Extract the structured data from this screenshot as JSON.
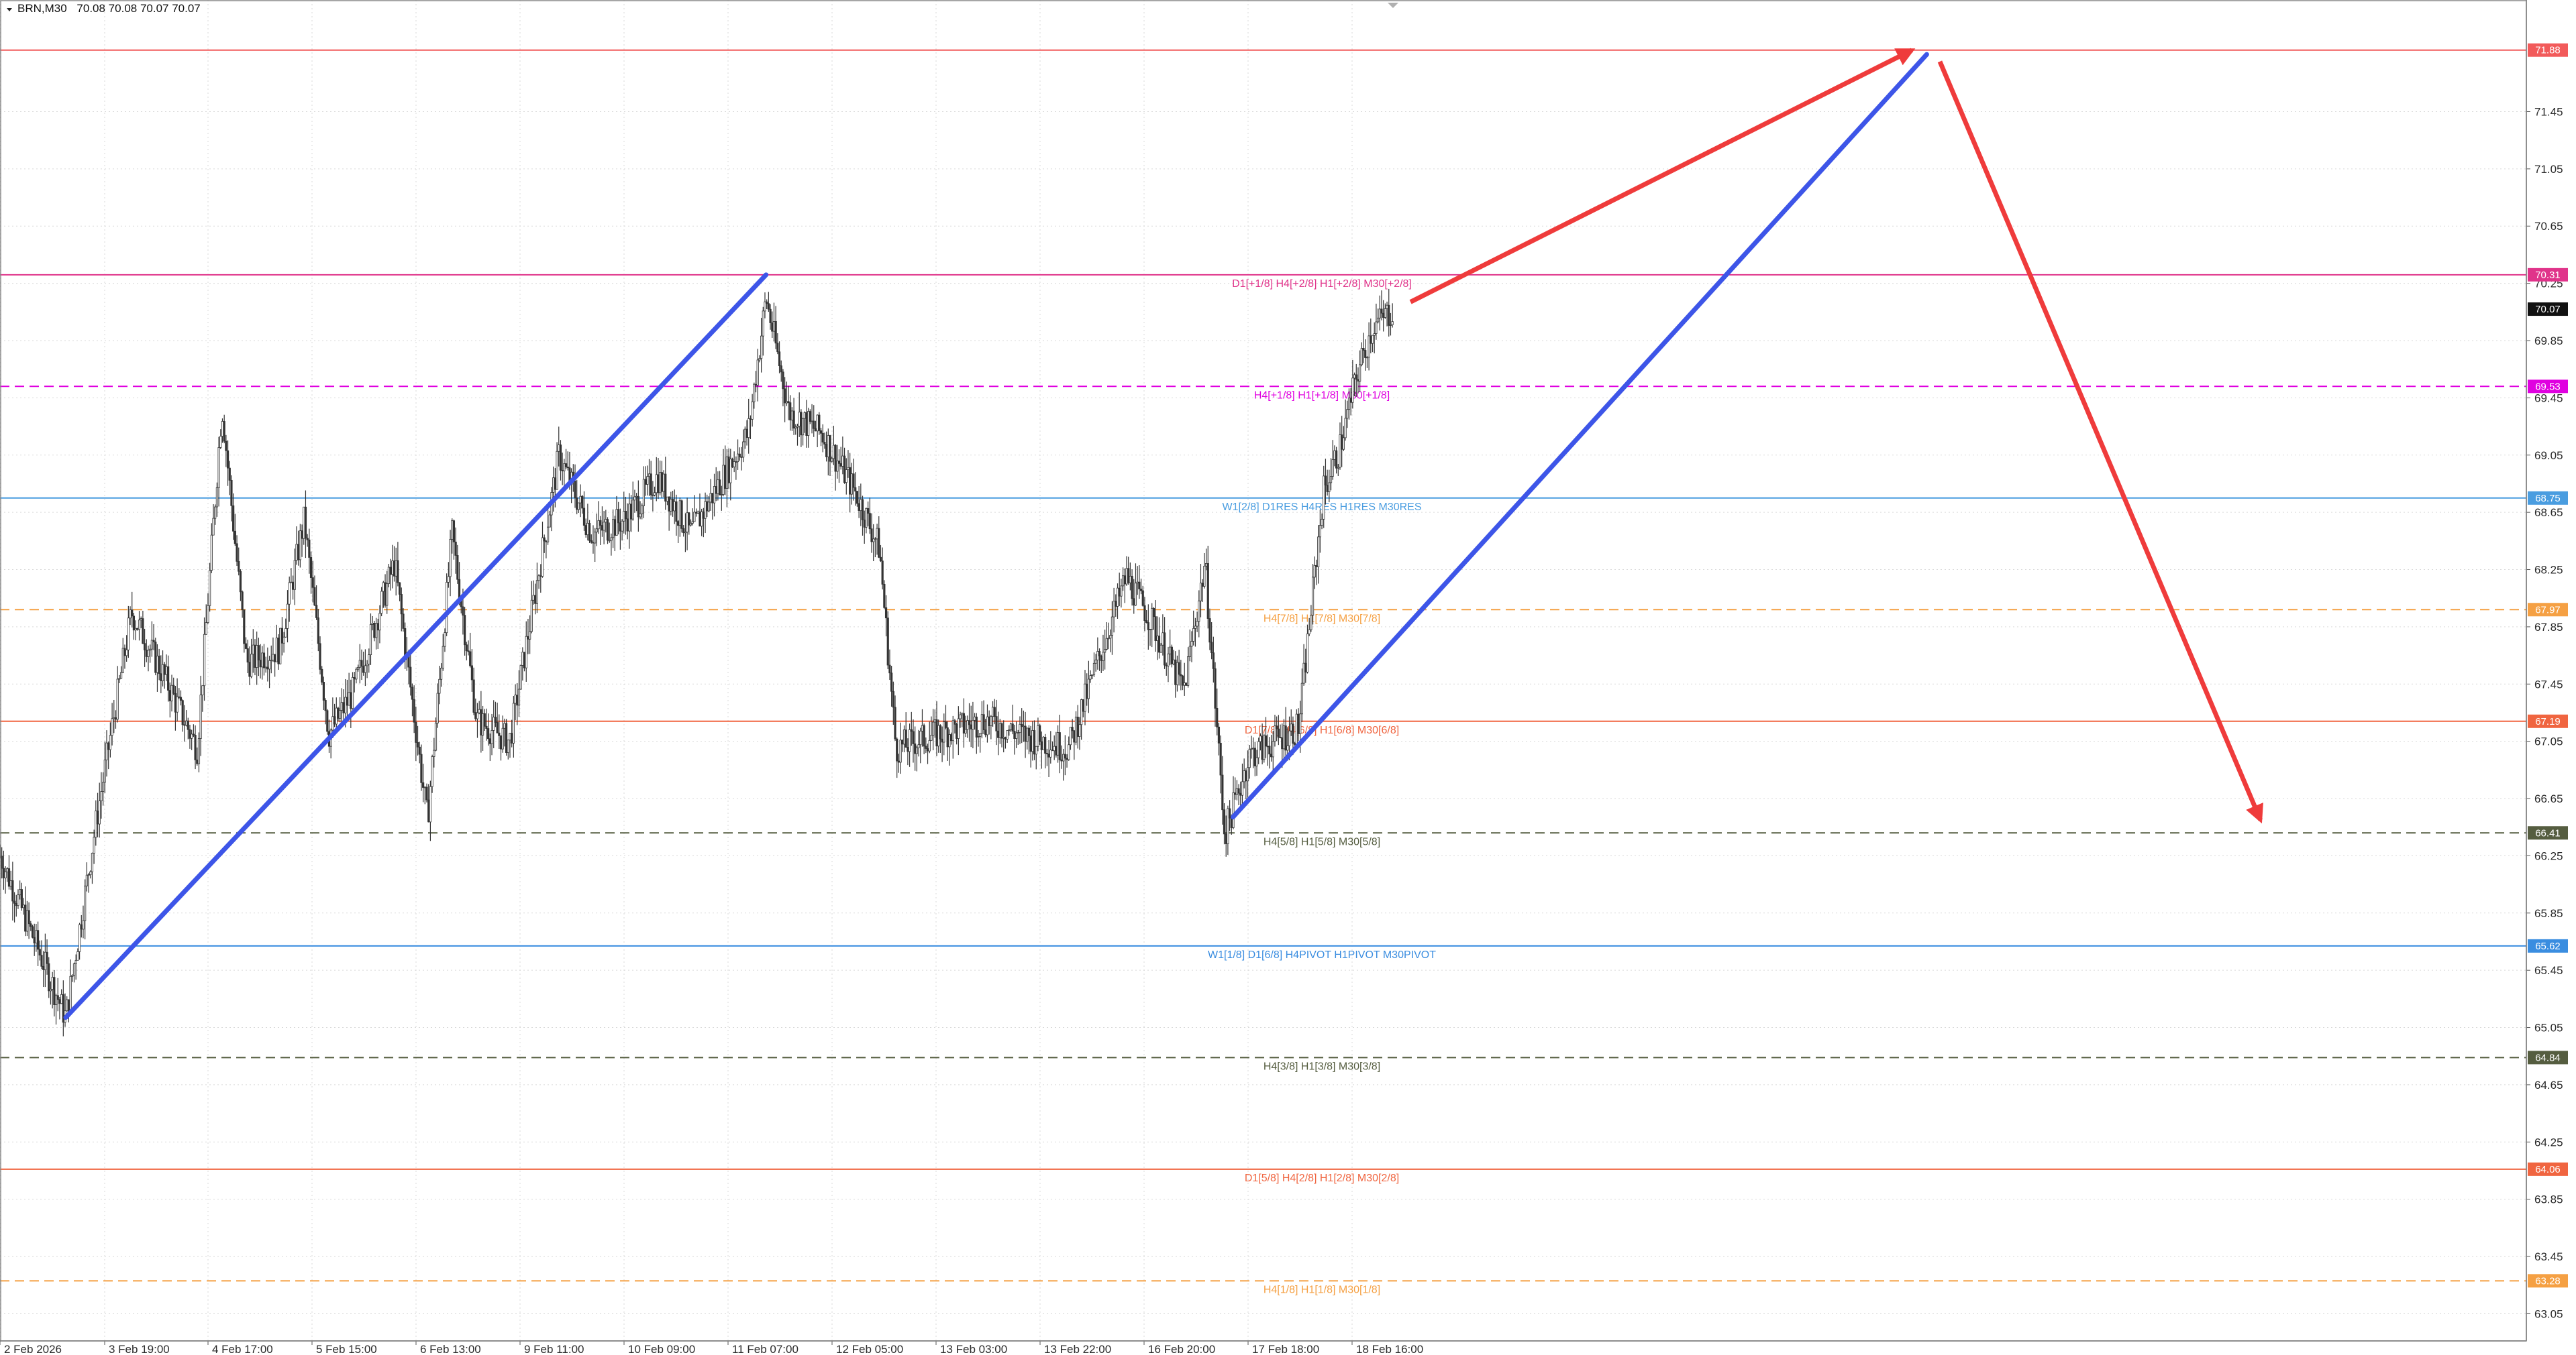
{
  "header": {
    "symbol": "BRN,M30",
    "ohlc": "70.08 70.08 70.07 70.07"
  },
  "chart_data": {
    "type": "candlestick",
    "symbol": "BRN",
    "timeframe": "M30",
    "ylim": [
      62.86,
      72.23
    ],
    "y_ticks": [
      "63.05",
      "63.45",
      "63.85",
      "64.25",
      "64.65",
      "65.05",
      "65.45",
      "65.85",
      "66.25",
      "66.65",
      "67.05",
      "67.45",
      "67.85",
      "68.25",
      "68.65",
      "69.05",
      "69.45",
      "69.85",
      "70.25",
      "70.65",
      "71.05",
      "71.45"
    ],
    "x_tick_labels": [
      "2 Feb 2026",
      "3 Feb 19:00",
      "4 Feb 17:00",
      "5 Feb 15:00",
      "6 Feb 13:00",
      "9 Feb 11:00",
      "10 Feb 09:00",
      "11 Feb 07:00",
      "12 Feb 05:00",
      "13 Feb 03:00",
      "13 Feb 22:00",
      "16 Feb 20:00",
      "17 Feb 18:00",
      "18 Feb 16:00"
    ],
    "current_price": "70.07",
    "price_anchors": [
      [
        0,
        66.25
      ],
      [
        40,
        65.12
      ],
      [
        60,
        66.6
      ],
      [
        80,
        67.95
      ],
      [
        100,
        67.5
      ],
      [
        120,
        67.0
      ],
      [
        135,
        69.4
      ],
      [
        150,
        67.6
      ],
      [
        170,
        67.7
      ],
      [
        185,
        68.6
      ],
      [
        200,
        67.1
      ],
      [
        215,
        67.4
      ],
      [
        240,
        68.3
      ],
      [
        260,
        66.5
      ],
      [
        275,
        68.5
      ],
      [
        290,
        67.2
      ],
      [
        310,
        67.05
      ],
      [
        340,
        69.05
      ],
      [
        360,
        68.5
      ],
      [
        380,
        68.6
      ],
      [
        400,
        68.9
      ],
      [
        420,
        68.5
      ],
      [
        440,
        68.9
      ],
      [
        455,
        69.2
      ],
      [
        466,
        70.15
      ],
      [
        480,
        69.35
      ],
      [
        500,
        69.2
      ],
      [
        520,
        68.8
      ],
      [
        535,
        68.4
      ],
      [
        545,
        67.0
      ],
      [
        570,
        67.1
      ],
      [
        600,
        67.2
      ],
      [
        620,
        67.1
      ],
      [
        650,
        67.0
      ],
      [
        685,
        68.2
      ],
      [
        700,
        67.9
      ],
      [
        720,
        67.4
      ],
      [
        733,
        68.3
      ],
      [
        745,
        66.4
      ],
      [
        760,
        66.95
      ],
      [
        790,
        67.15
      ],
      [
        805,
        68.8
      ],
      [
        815,
        69.1
      ],
      [
        825,
        69.6
      ],
      [
        835,
        69.95
      ],
      [
        848,
        70.07
      ]
    ],
    "levels": [
      {
        "price": "71.88",
        "label": "",
        "color": "#f25a5a",
        "dashed": false
      },
      {
        "price": "70.31",
        "label": "D1[+1/8] H4[+2/8] H1[+2/8] M30[+2/8]",
        "color": "#e0338a",
        "dashed": false
      },
      {
        "price": "69.53",
        "label": "H4[+1/8] H1[+1/8] M30[+1/8]",
        "color": "#e000e0",
        "dashed": true
      },
      {
        "price": "68.75",
        "label": "W1[2/8] D1RES H4RES H1RES M30RES",
        "color": "#4a9de0",
        "dashed": false
      },
      {
        "price": "67.97",
        "label": "H4[7/8] H1[7/8] M30[7/8]",
        "color": "#f5a043",
        "dashed": true
      },
      {
        "price": "67.19",
        "label": "D1[7/8] H4[6/8] H1[6/8] M30[6/8]",
        "color": "#f06540",
        "dashed": false
      },
      {
        "price": "66.41",
        "label": "H4[5/8] H1[5/8] M30[5/8]",
        "color": "#555d40",
        "dashed": true
      },
      {
        "price": "65.62",
        "label": "W1[1/8] D1[6/8] H4PIVOT H1PIVOT M30PIVOT",
        "color": "#3a8de0",
        "dashed": false
      },
      {
        "price": "64.84",
        "label": "H4[3/8] H1[3/8] M30[3/8]",
        "color": "#555d40",
        "dashed": true
      },
      {
        "price": "64.06",
        "label": "D1[5/8] H4[2/8] H1[2/8] M30[2/8]",
        "color": "#f06540",
        "dashed": false
      },
      {
        "price": "63.28",
        "label": "H4[1/8] H1[1/8] M30[1/8]",
        "color": "#f5a043",
        "dashed": true
      }
    ],
    "trendlines": [
      {
        "color": "#3d55e8",
        "from": [
          40,
          65.12
        ],
        "to": [
          466,
          70.31
        ]
      },
      {
        "color": "#3d55e8",
        "from": [
          750,
          66.52
        ],
        "to": [
          1172,
          71.85
        ]
      }
    ],
    "arrows": [
      {
        "color": "#ef3b3b",
        "from": [
          858,
          70.12
        ],
        "to": [
          1163,
          71.88
        ]
      },
      {
        "color": "#ef3b3b",
        "from": [
          1180,
          71.8
        ],
        "to": [
          1375,
          66.5
        ]
      }
    ],
    "colors": {
      "candle": "#333333",
      "grid": "#d9d9d9",
      "current_price_tag": "#111111"
    }
  }
}
